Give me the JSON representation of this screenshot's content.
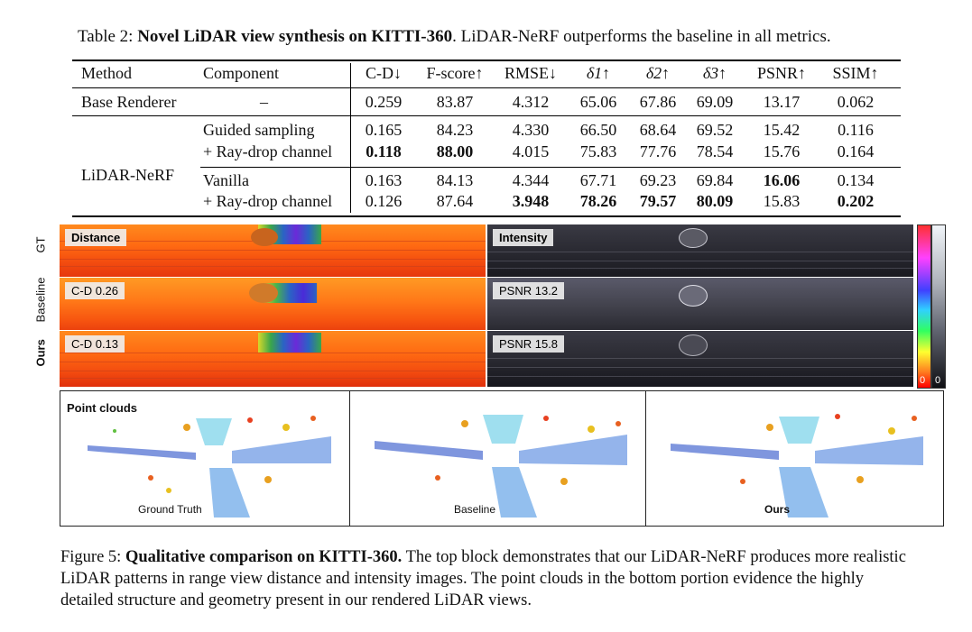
{
  "table": {
    "caption_label": "Table 2:",
    "caption_title": "Novel LiDAR view synthesis on KITTI-360",
    "caption_rest": ". LiDAR-NeRF outperforms the baseline in all metrics.",
    "headers": [
      "Method",
      "Component",
      "C-D↓",
      "F-score↑",
      "RMSE↓",
      "δ1↑",
      "δ2↑",
      "δ3↑",
      "PSNR↑",
      "SSIM↑"
    ],
    "rows": [
      {
        "method": "Base Renderer",
        "component": "–",
        "values": [
          "0.259",
          "83.87",
          "4.312",
          "65.06",
          "67.86",
          "69.09",
          "13.17",
          "0.062"
        ]
      },
      {
        "method": "",
        "component": "Guided sampling",
        "values": [
          "0.165",
          "84.23",
          "4.330",
          "66.50",
          "68.64",
          "69.52",
          "15.42",
          "0.116"
        ]
      },
      {
        "method": "LiDAR-NeRF",
        "component": "+ Ray-drop channel",
        "values": [
          "0.118",
          "88.00",
          "4.015",
          "75.83",
          "77.76",
          "78.54",
          "15.76",
          "0.164"
        ]
      },
      {
        "method": "",
        "component": "Vanilla",
        "values": [
          "0.163",
          "84.13",
          "4.344",
          "67.71",
          "69.23",
          "69.84",
          "16.06",
          "0.134"
        ]
      },
      {
        "method": "",
        "component": "+ Ray-drop channel",
        "values": [
          "0.126",
          "87.64",
          "3.948",
          "78.26",
          "79.57",
          "80.09",
          "15.83",
          "0.202"
        ]
      }
    ]
  },
  "figure": {
    "row_labels": [
      "GT",
      "Baseline",
      "Ours"
    ],
    "distance_tags": [
      "Distance",
      "C-D 0.26",
      "C-D 0.13"
    ],
    "intensity_tags": [
      "Intensity",
      "PSNR 13.2",
      "PSNR 15.8"
    ],
    "colorbar_min_left": "0",
    "colorbar_min_right": "0",
    "pointcloud_tag": "Point clouds",
    "pointcloud_labels": [
      "Ground Truth",
      "Baseline",
      "Ours"
    ]
  },
  "caption": {
    "label": "Figure 5:",
    "title": "Qualitative comparison on KITTI-360.",
    "body": "The top block demonstrates that our LiDAR-NeRF produces more realistic LiDAR patterns in range view distance and intensity images. The point clouds in the bottom portion evidence the highly detailed structure and geometry present in our rendered LiDAR views."
  }
}
